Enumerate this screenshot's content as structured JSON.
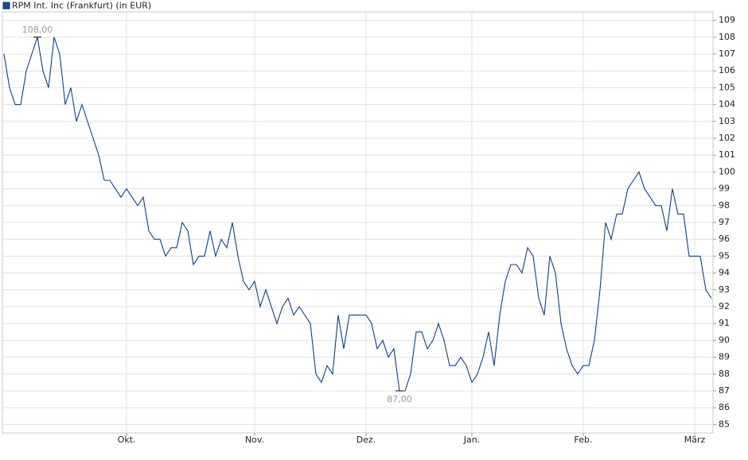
{
  "chart_data": {
    "type": "line",
    "legend_title": "RPM Int. Inc (Frankfurt) (in EUR)",
    "categories": [
      null,
      null,
      null,
      null,
      null,
      null,
      null,
      null,
      null,
      null,
      null,
      null,
      null,
      null,
      null,
      null,
      null,
      null,
      null,
      null,
      null,
      null,
      "Okt.",
      null,
      null,
      null,
      null,
      null,
      null,
      null,
      null,
      null,
      null,
      null,
      null,
      null,
      null,
      null,
      null,
      null,
      null,
      null,
      null,
      null,
      null,
      "Nov.",
      null,
      null,
      null,
      null,
      null,
      null,
      null,
      null,
      null,
      null,
      null,
      null,
      null,
      null,
      null,
      null,
      null,
      null,
      null,
      "Dez.",
      null,
      null,
      null,
      null,
      null,
      null,
      null,
      null,
      null,
      null,
      null,
      null,
      null,
      null,
      null,
      null,
      null,
      null,
      "Jan.",
      null,
      null,
      null,
      null,
      null,
      null,
      null,
      null,
      null,
      null,
      null,
      null,
      null,
      null,
      null,
      null,
      null,
      null,
      null,
      "Feb.",
      null,
      null,
      null,
      null,
      null,
      null,
      null,
      null,
      null,
      null,
      null,
      null,
      null,
      null,
      null,
      null,
      null,
      null,
      null,
      "März",
      null,
      null,
      null
    ],
    "series": [
      {
        "name": "RPM Int. Inc (Frankfurt) (in EUR)",
        "color": "#0d3f8f",
        "values": [
          107,
          105,
          104,
          104,
          106,
          107,
          108,
          106,
          105,
          108,
          107,
          104,
          105,
          103,
          104,
          103,
          102,
          101,
          99.5,
          99.5,
          99,
          98.5,
          99,
          98.5,
          98,
          98.5,
          96.5,
          96,
          96,
          95,
          95.5,
          95.5,
          97,
          96.5,
          94.5,
          95,
          95,
          96.5,
          95,
          96,
          95.5,
          97,
          95,
          93.5,
          93,
          93.5,
          92,
          93,
          92,
          91,
          92,
          92.5,
          91.5,
          92,
          91.5,
          91,
          88,
          87.5,
          88.5,
          88,
          91.5,
          89.5,
          91.5,
          91.5,
          91.5,
          91.5,
          91,
          89.5,
          90,
          89,
          89.5,
          87,
          87,
          88,
          90.5,
          90.5,
          89.5,
          90,
          91,
          90,
          88.5,
          88.5,
          89,
          88.5,
          87.5,
          88,
          89,
          90.5,
          88.5,
          91.5,
          93.5,
          94.5,
          94.5,
          94,
          95.5,
          95,
          92.5,
          91.5,
          95,
          94,
          91,
          89.5,
          88.5,
          88,
          88.5,
          88.5,
          90,
          93,
          97,
          96,
          97.5,
          97.5,
          99,
          99.5,
          100,
          99,
          98.5,
          98,
          98,
          96.5,
          99,
          97.5,
          97.5,
          95,
          95,
          95,
          93,
          92.5
        ]
      }
    ],
    "annotations": [
      {
        "value": 108,
        "label": "108,00"
      },
      {
        "value": 87,
        "label": "87,00"
      }
    ],
    "ylim": [
      84.5,
      109.5
    ],
    "yticks": [
      85,
      86,
      87,
      88,
      89,
      90,
      91,
      92,
      93,
      94,
      95,
      96,
      97,
      98,
      99,
      100,
      101,
      102,
      103,
      104,
      105,
      106,
      107,
      108,
      109
    ],
    "grid": true
  }
}
